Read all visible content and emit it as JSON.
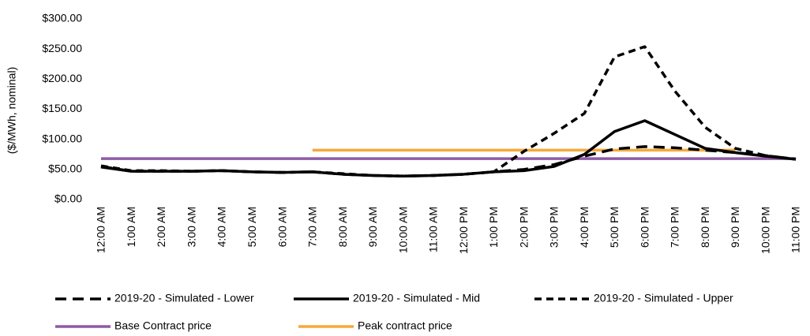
{
  "chart_data": {
    "type": "line",
    "y_label": "($/MWh, nominal)",
    "categories": [
      "12:00 AM",
      "1:00 AM",
      "2:00 AM",
      "3:00 AM",
      "4:00 AM",
      "5:00 AM",
      "6:00 AM",
      "7:00 AM",
      "8:00 AM",
      "9:00 AM",
      "10:00 AM",
      "11:00 AM",
      "12:00 PM",
      "1:00 PM",
      "2:00 PM",
      "3:00 PM",
      "4:00 PM",
      "5:00 PM",
      "6:00 PM",
      "7:00 PM",
      "8:00 PM",
      "9:00 PM",
      "10:00 PM",
      "11:00 PM"
    ],
    "ylim": [
      0,
      300
    ],
    "yticks": [
      {
        "value": 0,
        "label": "$0.00"
      },
      {
        "value": 50,
        "label": "$50.00"
      },
      {
        "value": 100,
        "label": "$100.00"
      },
      {
        "value": 150,
        "label": "$150.00"
      },
      {
        "value": 200,
        "label": "$200.00"
      },
      {
        "value": 250,
        "label": "$250.00"
      },
      {
        "value": 300,
        "label": "$300.00"
      }
    ],
    "series": [
      {
        "name": "2019-20 - Simulated - Lower",
        "color": "#000000",
        "dash": "14,8",
        "values": [
          55,
          47,
          47,
          47,
          48,
          46,
          45,
          46,
          42,
          40,
          39,
          40,
          42,
          46,
          50,
          58,
          72,
          84,
          88,
          86,
          82,
          78,
          73,
          67
        ]
      },
      {
        "name": "2019-20 - Simulated - Mid",
        "color": "#000000",
        "dash": "none",
        "values": [
          54,
          47,
          47,
          47,
          48,
          46,
          45,
          46,
          42,
          40,
          39,
          40,
          42,
          46,
          48,
          55,
          75,
          113,
          131,
          108,
          85,
          78,
          72,
          67
        ]
      },
      {
        "name": "2019-20 - Simulated - Upper",
        "color": "#000000",
        "dash": "9,6",
        "values": [
          56,
          48,
          48,
          47,
          48,
          46,
          45,
          46,
          43,
          40,
          39,
          40,
          42,
          46,
          80,
          110,
          143,
          237,
          254,
          180,
          120,
          85,
          73,
          67
        ]
      },
      {
        "name": "Base Contract price",
        "color": "#8e5ba6",
        "dash": "none",
        "values": [
          68,
          68,
          68,
          68,
          68,
          68,
          68,
          68,
          68,
          68,
          68,
          68,
          68,
          68,
          68,
          68,
          68,
          68,
          68,
          68,
          68,
          68,
          68,
          68
        ]
      },
      {
        "name": "Peak contract price",
        "color": "#f5a93a",
        "dash": "none",
        "values": [
          null,
          null,
          null,
          null,
          null,
          null,
          null,
          82,
          82,
          82,
          82,
          82,
          82,
          82,
          82,
          82,
          82,
          82,
          82,
          82,
          82,
          82,
          null,
          null
        ]
      }
    ]
  }
}
